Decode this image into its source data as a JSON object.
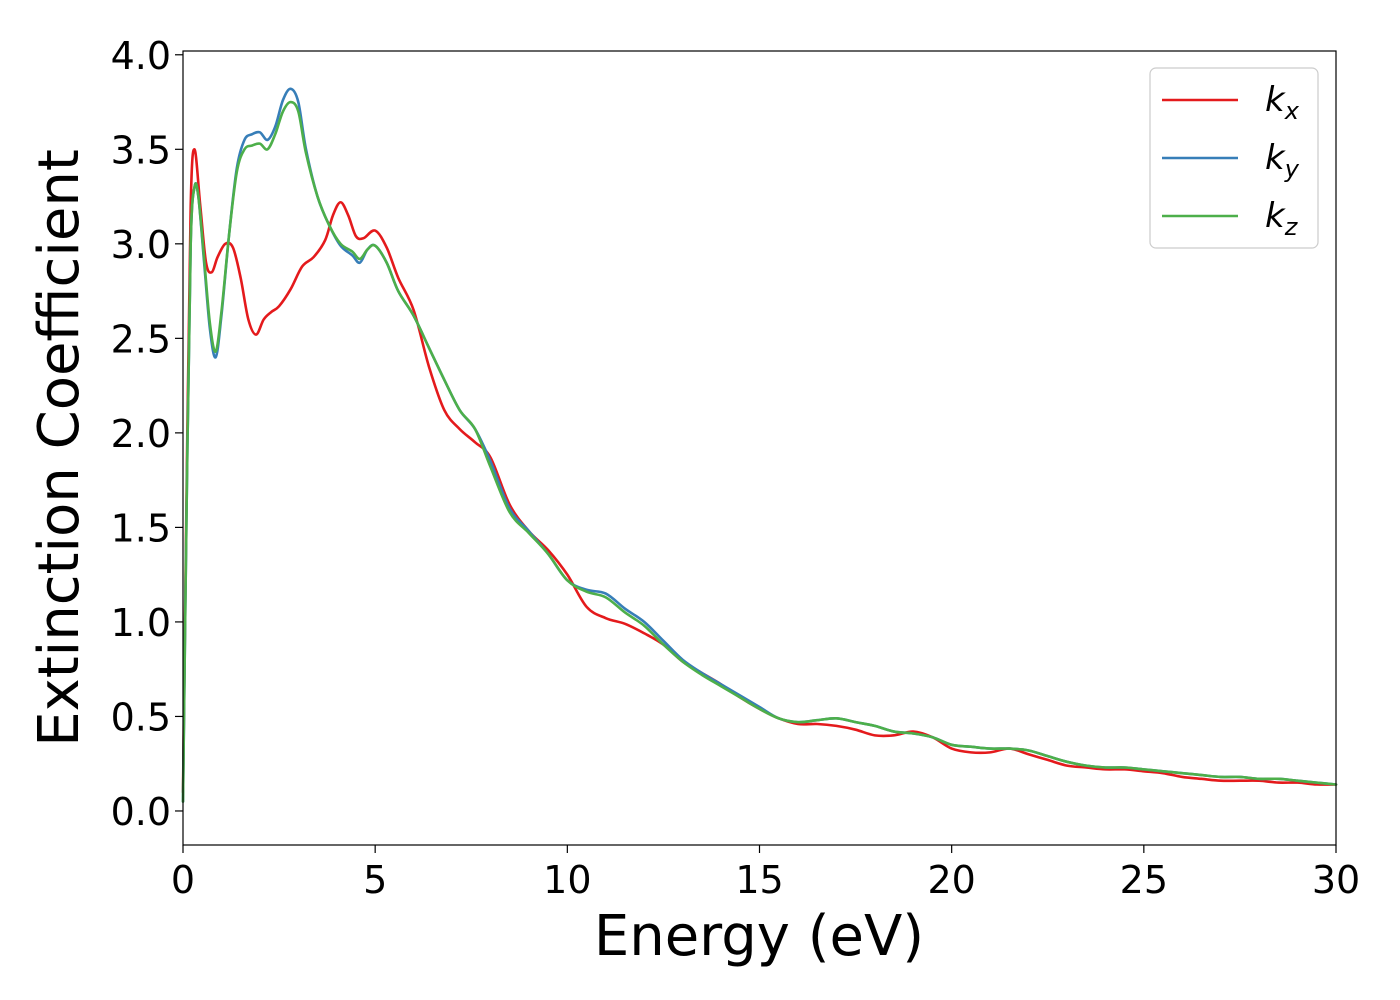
{
  "chart_data": {
    "type": "line",
    "xlabel": "Energy (eV)",
    "ylabel": "Extinction Coefficient",
    "xlim": [
      0,
      30
    ],
    "ylim": [
      -0.18,
      4.02
    ],
    "xticks": [
      0,
      5,
      10,
      15,
      20,
      25,
      30
    ],
    "xtick_labels": [
      "0",
      "5",
      "10",
      "15",
      "20",
      "25",
      "30"
    ],
    "yticks": [
      0.0,
      0.5,
      1.0,
      1.5,
      2.0,
      2.5,
      3.0,
      3.5,
      4.0
    ],
    "ytick_labels": [
      "0.0",
      "0.5",
      "1.0",
      "1.5",
      "2.0",
      "2.5",
      "3.0",
      "3.5",
      "4.0"
    ],
    "grid": false,
    "legend_position": "top-right",
    "series": [
      {
        "name": "k",
        "subscript": "x",
        "color": "#e41a1c",
        "x": [
          0,
          0.1,
          0.2,
          0.3,
          0.45,
          0.6,
          0.75,
          0.9,
          1.1,
          1.3,
          1.5,
          1.7,
          1.9,
          2.1,
          2.3,
          2.5,
          2.8,
          3.1,
          3.4,
          3.7,
          3.9,
          4.1,
          4.3,
          4.5,
          4.7,
          5.0,
          5.3,
          5.6,
          6.0,
          6.4,
          6.8,
          7.2,
          7.6,
          8.0,
          8.5,
          9.0,
          9.5,
          10.0,
          10.5,
          11.0,
          11.5,
          12.0,
          12.5,
          13.0,
          13.5,
          14.0,
          14.5,
          15.0,
          15.5,
          16.0,
          16.5,
          17.0,
          17.5,
          18.0,
          18.5,
          19.0,
          19.5,
          20.0,
          20.5,
          21.0,
          21.5,
          22.0,
          22.5,
          23.0,
          23.5,
          24.0,
          24.5,
          25.0,
          25.5,
          26.0,
          26.5,
          27.0,
          27.5,
          28.0,
          28.5,
          29.0,
          29.5,
          30.0
        ],
        "y": [
          0.1,
          1.8,
          3.2,
          3.5,
          3.2,
          2.9,
          2.85,
          2.93,
          3.0,
          2.98,
          2.82,
          2.6,
          2.52,
          2.6,
          2.64,
          2.67,
          2.76,
          2.88,
          2.93,
          3.02,
          3.15,
          3.22,
          3.15,
          3.04,
          3.03,
          3.07,
          2.98,
          2.82,
          2.65,
          2.35,
          2.12,
          2.02,
          1.95,
          1.87,
          1.62,
          1.48,
          1.38,
          1.25,
          1.08,
          1.02,
          0.99,
          0.94,
          0.88,
          0.79,
          0.73,
          0.67,
          0.6,
          0.54,
          0.49,
          0.46,
          0.46,
          0.45,
          0.43,
          0.4,
          0.4,
          0.42,
          0.39,
          0.33,
          0.31,
          0.31,
          0.33,
          0.3,
          0.27,
          0.24,
          0.23,
          0.22,
          0.22,
          0.21,
          0.2,
          0.18,
          0.17,
          0.16,
          0.16,
          0.16,
          0.15,
          0.15,
          0.14,
          0.14
        ]
      },
      {
        "name": "k",
        "subscript": "y",
        "color": "#377eb8",
        "x": [
          0,
          0.1,
          0.2,
          0.3,
          0.4,
          0.55,
          0.7,
          0.85,
          1.0,
          1.2,
          1.4,
          1.6,
          1.8,
          2.0,
          2.2,
          2.4,
          2.6,
          2.8,
          3.0,
          3.2,
          3.5,
          3.8,
          4.1,
          4.4,
          4.6,
          4.8,
          5.0,
          5.3,
          5.6,
          6.0,
          6.4,
          6.8,
          7.2,
          7.6,
          8.0,
          8.5,
          9.0,
          9.5,
          10.0,
          10.5,
          11.0,
          11.5,
          12.0,
          12.5,
          13.0,
          13.5,
          14.0,
          14.5,
          15.0,
          15.5,
          16.0,
          16.5,
          17.0,
          17.5,
          18.0,
          18.5,
          19.0,
          19.5,
          20.0,
          20.5,
          21.0,
          21.5,
          22.0,
          22.5,
          23.0,
          23.5,
          24.0,
          24.5,
          25.0,
          25.5,
          26.0,
          26.5,
          27.0,
          27.5,
          28.0,
          28.5,
          29.0,
          29.5,
          30.0
        ],
        "y": [
          0.05,
          1.7,
          3.0,
          3.3,
          3.25,
          2.9,
          2.55,
          2.4,
          2.62,
          3.05,
          3.4,
          3.55,
          3.58,
          3.59,
          3.55,
          3.62,
          3.76,
          3.82,
          3.75,
          3.5,
          3.25,
          3.1,
          2.99,
          2.94,
          2.9,
          2.97,
          2.99,
          2.9,
          2.75,
          2.62,
          2.45,
          2.28,
          2.12,
          2.02,
          1.85,
          1.6,
          1.48,
          1.36,
          1.22,
          1.17,
          1.15,
          1.07,
          1.0,
          0.9,
          0.8,
          0.73,
          0.67,
          0.61,
          0.55,
          0.49,
          0.47,
          0.48,
          0.49,
          0.47,
          0.45,
          0.42,
          0.41,
          0.39,
          0.35,
          0.34,
          0.33,
          0.33,
          0.32,
          0.29,
          0.26,
          0.24,
          0.23,
          0.23,
          0.22,
          0.21,
          0.2,
          0.19,
          0.18,
          0.18,
          0.17,
          0.17,
          0.16,
          0.15,
          0.14
        ]
      },
      {
        "name": "k",
        "subscript": "z",
        "color": "#4daf4a",
        "x": [
          0,
          0.1,
          0.2,
          0.3,
          0.4,
          0.55,
          0.7,
          0.85,
          1.0,
          1.2,
          1.4,
          1.6,
          1.8,
          2.0,
          2.2,
          2.4,
          2.6,
          2.8,
          3.0,
          3.2,
          3.5,
          3.8,
          4.1,
          4.4,
          4.6,
          4.8,
          5.0,
          5.3,
          5.6,
          6.0,
          6.4,
          6.8,
          7.2,
          7.6,
          8.0,
          8.5,
          9.0,
          9.5,
          10.0,
          10.5,
          11.0,
          11.5,
          12.0,
          12.5,
          13.0,
          13.5,
          14.0,
          14.5,
          15.0,
          15.5,
          16.0,
          16.5,
          17.0,
          17.5,
          18.0,
          18.5,
          19.0,
          19.5,
          20.0,
          20.5,
          21.0,
          21.5,
          22.0,
          22.5,
          23.0,
          23.5,
          24.0,
          24.5,
          25.0,
          25.5,
          26.0,
          26.5,
          27.0,
          27.5,
          28.0,
          28.5,
          29.0,
          29.5,
          30.0
        ],
        "y": [
          0.05,
          1.7,
          3.0,
          3.3,
          3.25,
          2.92,
          2.58,
          2.43,
          2.64,
          3.05,
          3.38,
          3.5,
          3.52,
          3.53,
          3.5,
          3.58,
          3.7,
          3.75,
          3.7,
          3.48,
          3.25,
          3.1,
          3.0,
          2.96,
          2.92,
          2.97,
          2.99,
          2.9,
          2.75,
          2.62,
          2.45,
          2.28,
          2.12,
          2.02,
          1.82,
          1.58,
          1.47,
          1.36,
          1.22,
          1.16,
          1.13,
          1.05,
          0.98,
          0.88,
          0.79,
          0.72,
          0.66,
          0.6,
          0.54,
          0.49,
          0.47,
          0.48,
          0.49,
          0.47,
          0.45,
          0.42,
          0.41,
          0.39,
          0.35,
          0.34,
          0.33,
          0.33,
          0.32,
          0.29,
          0.26,
          0.24,
          0.23,
          0.23,
          0.22,
          0.21,
          0.2,
          0.19,
          0.18,
          0.18,
          0.17,
          0.17,
          0.16,
          0.15,
          0.14
        ]
      }
    ]
  }
}
